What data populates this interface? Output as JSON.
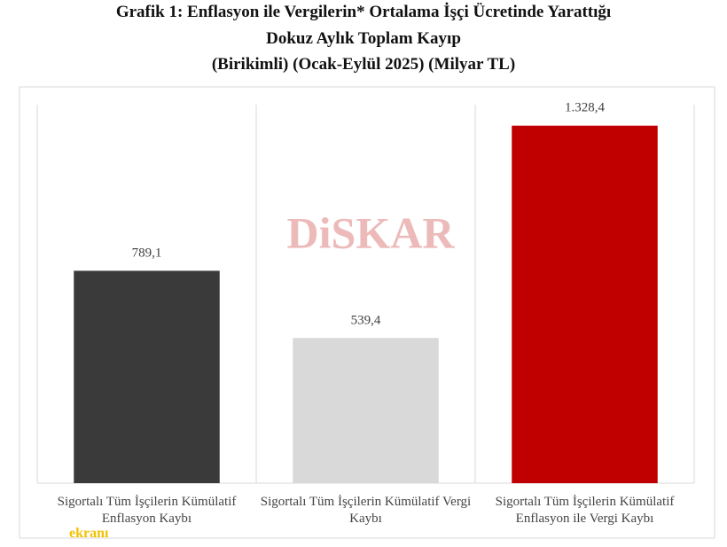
{
  "chart_data": {
    "type": "bar",
    "title": [
      "Grafik 1: Enflasyon ile Vergilerin* Ortalama İşçi Ücretinde Yarattığı",
      "Dokuz Aylık Toplam Kayıp",
      "(Birikimli) (Ocak-Eylül 2025) (Milyar TL)"
    ],
    "categories": [
      "Sigortalı Tüm İşçilerin Kümülatif Enflasyon Kaybı",
      "Sigortalı Tüm İşçilerin Kümülatif Vergi Kaybı",
      "Sigortalı Tüm İşçilerin Kümülatif Enflasyon ile Vergi Kaybı"
    ],
    "values": [
      789.1,
      539.4,
      1328.4
    ],
    "value_labels": [
      "789,1",
      "539,4",
      "1.328,4"
    ],
    "colors": [
      "#3a3a3a",
      "#d9d9d9",
      "#c00000"
    ],
    "ylim": [
      0,
      1400
    ],
    "annotations": [
      "DiSKAR",
      "ekranı"
    ]
  }
}
